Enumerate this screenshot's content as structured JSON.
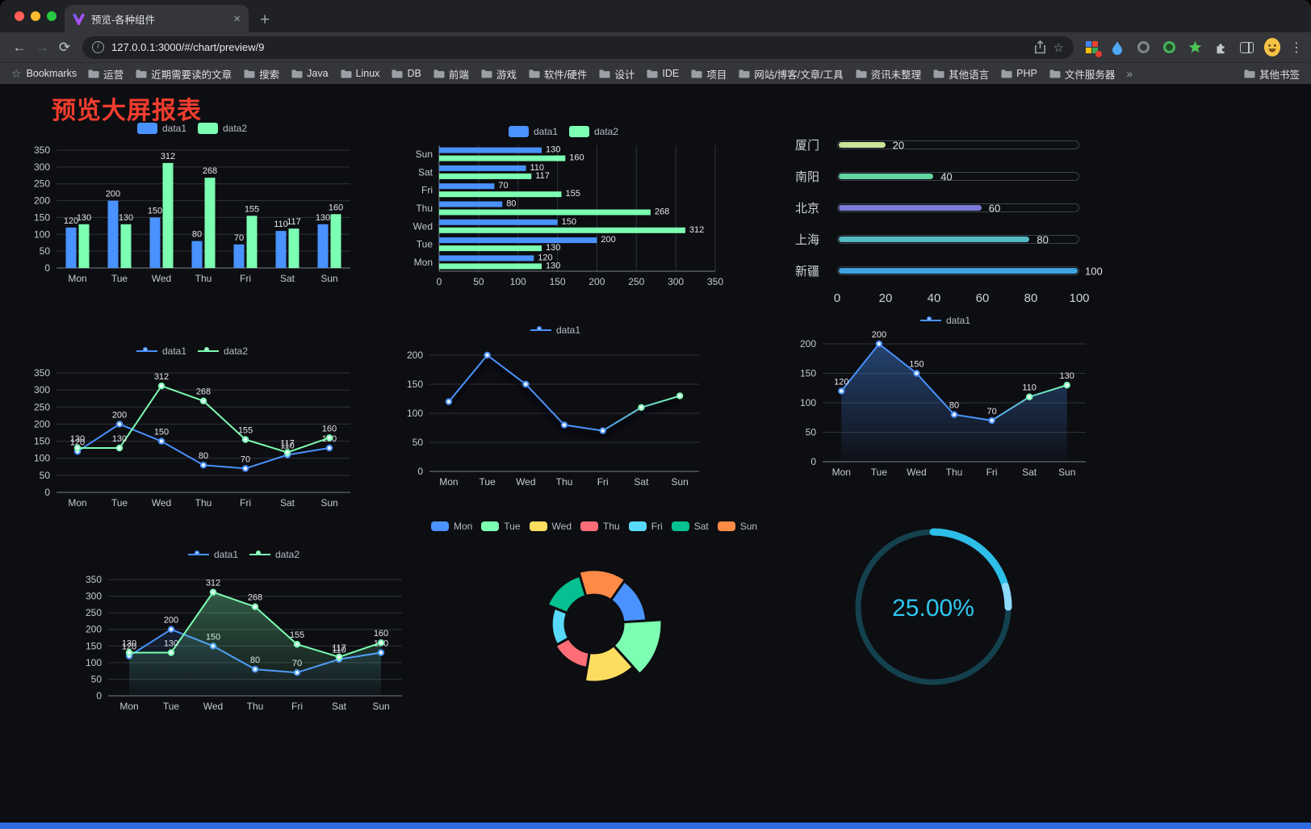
{
  "browser": {
    "traffic_lights": [
      "#ff5f57",
      "#febc2e",
      "#28c840"
    ],
    "tab": {
      "title": "预览-各种组件"
    },
    "url": "127.0.0.1:3000/#/chart/preview/9",
    "icons": {
      "back": "←",
      "forward": "→",
      "reload": "⟳",
      "close": "×",
      "new_tab": "+",
      "menu": "⋮",
      "star": "☆",
      "bookmarks_star": "☆",
      "info": "i",
      "overflow": "»"
    },
    "bookmarks": {
      "label": "Bookmarks",
      "items": [
        "运营",
        "近期需要读的文章",
        "搜索",
        "Java",
        "Linux",
        "DB",
        "前端",
        "游戏",
        "软件/硬件",
        "设计",
        "IDE",
        "项目",
        "网站/博客/文章/工具",
        "资讯未整理",
        "其他语言",
        "PHP",
        "文件服务器"
      ],
      "other_label": "其他书签"
    }
  },
  "page": {
    "title": "预览大屏报表",
    "title_color": "#f23d2e",
    "footer_color": "#2e6be0",
    "background": "#0d0e12"
  },
  "chart_data": [
    {
      "id": "bar-grouped",
      "type": "bar",
      "categories": [
        "Mon",
        "Tue",
        "Wed",
        "Thu",
        "Fri",
        "Sat",
        "Sun"
      ],
      "series": [
        {
          "name": "data1",
          "color": "#4992ff",
          "values": [
            120,
            200,
            150,
            80,
            70,
            110,
            130
          ]
        },
        {
          "name": "data2",
          "color": "#7cffb2",
          "values": [
            130,
            130,
            312,
            268,
            155,
            117,
            160
          ]
        }
      ],
      "ylim": [
        0,
        350
      ],
      "yticks": [
        0,
        50,
        100,
        150,
        200,
        250,
        300,
        350
      ],
      "value_labels": true,
      "legend_position": "top",
      "grid": true
    },
    {
      "id": "hbar-grouped",
      "type": "hbar",
      "categories": [
        "Mon",
        "Tue",
        "Wed",
        "Thu",
        "Fri",
        "Sat",
        "Sun"
      ],
      "series": [
        {
          "name": "data1",
          "color": "#4992ff",
          "values": [
            120,
            200,
            150,
            80,
            70,
            110,
            130
          ]
        },
        {
          "name": "data2",
          "color": "#7cffb2",
          "values": [
            130,
            130,
            312,
            268,
            155,
            117,
            160
          ]
        }
      ],
      "xlim": [
        0,
        350
      ],
      "xticks": [
        0,
        50,
        100,
        150,
        200,
        250,
        300,
        350
      ],
      "value_labels": true,
      "legend_position": "top",
      "grid": true
    },
    {
      "id": "progress-list",
      "type": "progress",
      "max": 100,
      "xticks": [
        0,
        20,
        40,
        60,
        80,
        100
      ],
      "items": [
        {
          "label": "厦门",
          "value": 20,
          "color": "#c9e59b"
        },
        {
          "label": "南阳",
          "value": 40,
          "color": "#63d5a2"
        },
        {
          "label": "北京",
          "value": 60,
          "color": "#7a7cd8"
        },
        {
          "label": "上海",
          "value": 80,
          "color": "#55b9c4"
        },
        {
          "label": "新疆",
          "value": 100,
          "color": "#3fa4e2"
        }
      ]
    },
    {
      "id": "line-grouped",
      "type": "line",
      "categories": [
        "Mon",
        "Tue",
        "Wed",
        "Thu",
        "Fri",
        "Sat",
        "Sun"
      ],
      "series": [
        {
          "name": "data1",
          "color": "#4992ff",
          "values": [
            120,
            200,
            150,
            80,
            70,
            110,
            130
          ]
        },
        {
          "name": "data2",
          "color": "#7cffb2",
          "values": [
            130,
            130,
            312,
            268,
            155,
            117,
            160
          ]
        }
      ],
      "ylim": [
        0,
        350
      ],
      "yticks": [
        0,
        50,
        100,
        150,
        200,
        250,
        300,
        350
      ],
      "value_labels": true,
      "legend_position": "top",
      "grid": true
    },
    {
      "id": "line-single-shadow",
      "type": "line",
      "categories": [
        "Mon",
        "Tue",
        "Wed",
        "Thu",
        "Fri",
        "Sat",
        "Sun"
      ],
      "series": [
        {
          "name": "data1",
          "color": "#4992ff",
          "values": [
            120,
            200,
            150,
            80,
            70,
            110,
            130
          ],
          "gradient": true
        }
      ],
      "ylim": [
        0,
        200
      ],
      "yticks": [
        0,
        50,
        100,
        150,
        200
      ],
      "value_labels": false,
      "shadow": true,
      "legend_position": "top",
      "grid": true
    },
    {
      "id": "area-single",
      "type": "line",
      "categories": [
        "Mon",
        "Tue",
        "Wed",
        "Thu",
        "Fri",
        "Sat",
        "Sun"
      ],
      "series": [
        {
          "name": "data1",
          "color": "#4992ff",
          "values": [
            120,
            200,
            150,
            80,
            70,
            110,
            130
          ],
          "gradient": true,
          "area": true,
          "area_opacity": 0.4
        }
      ],
      "ylim": [
        0,
        200
      ],
      "yticks": [
        0,
        50,
        100,
        150,
        200
      ],
      "value_labels": true,
      "legend_position": "top",
      "grid": true
    },
    {
      "id": "line-area-grouped",
      "type": "line",
      "categories": [
        "Mon",
        "Tue",
        "Wed",
        "Thu",
        "Fri",
        "Sat",
        "Sun"
      ],
      "series": [
        {
          "name": "data1",
          "color": "#4992ff",
          "values": [
            120,
            200,
            150,
            80,
            70,
            110,
            130
          ],
          "area": true,
          "area_opacity": 0.13
        },
        {
          "name": "data2",
          "color": "#7cffb2",
          "values": [
            130,
            130,
            312,
            268,
            155,
            117,
            160
          ],
          "area": true,
          "area_opacity": 0.32
        }
      ],
      "ylim": [
        0,
        350
      ],
      "yticks": [
        0,
        50,
        100,
        150,
        200,
        250,
        300,
        350
      ],
      "value_labels": true,
      "legend_position": "top",
      "grid": true
    },
    {
      "id": "pie-rose",
      "type": "pie",
      "rose": true,
      "start_angle": -55,
      "items": [
        {
          "name": "Mon",
          "value": 120,
          "color": "#4992ff"
        },
        {
          "name": "Tue",
          "value": 200,
          "color": "#7cffb2"
        },
        {
          "name": "Wed",
          "value": 150,
          "color": "#fddd60"
        },
        {
          "name": "Thu",
          "value": 80,
          "color": "#ff6e76"
        },
        {
          "name": "Fri",
          "value": 70,
          "color": "#58d9f9"
        },
        {
          "name": "Sat",
          "value": 110,
          "color": "#05c091"
        },
        {
          "name": "Sun",
          "value": 130,
          "color": "#ff8a45"
        }
      ],
      "legend_position": "top"
    },
    {
      "id": "gauge-progress",
      "type": "gauge",
      "value": 25,
      "max": 100,
      "label": "25.00%",
      "color": "#2ec6f0",
      "highlight": "#8ed9f8",
      "track_color": "#14414e"
    }
  ]
}
